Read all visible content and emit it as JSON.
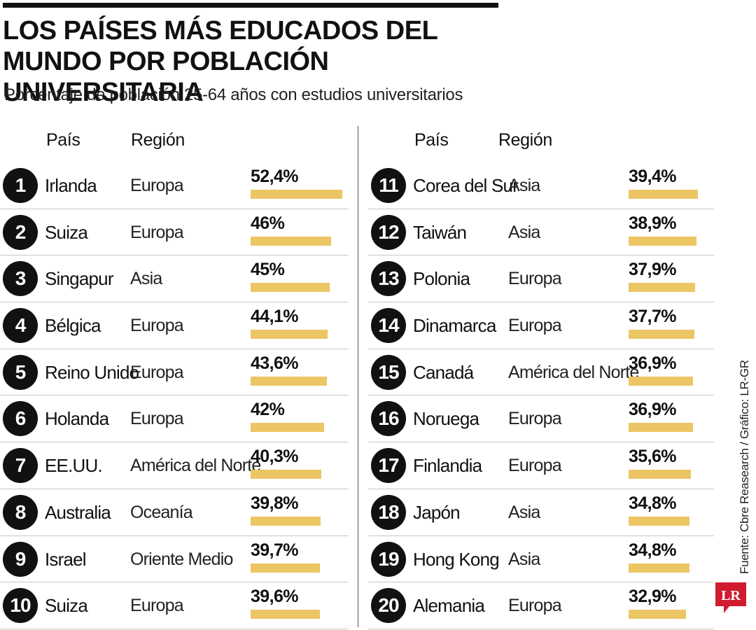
{
  "title": "LOS PAÍSES MÁS EDUCADOS DEL MUNDO POR POBLACIÓN UNIVERSITARIA",
  "subtitle": "Porcentaje de población 25-64 años con estudios universitarios",
  "headers": {
    "country": "País",
    "region": "Región"
  },
  "source": "Fuente: Cbre Reasearch / Gráfico: LR-GR",
  "logo_text": "LR",
  "colors": {
    "bar": "#ecc564",
    "rank_bg": "#111111",
    "logo": "#d01b2f"
  },
  "chart_data": {
    "type": "bar",
    "orientation": "horizontal",
    "title": "LOS PAÍSES MÁS EDUCADOS DEL MUNDO POR POBLACIÓN UNIVERSITARIA",
    "subtitle": "Porcentaje de población 25-64 años con estudios universitarios",
    "unit": "%",
    "rows": [
      {
        "rank": "1",
        "country": "Irlanda",
        "region": "Europa",
        "value": 52.4,
        "label": "52,4%"
      },
      {
        "rank": "2",
        "country": "Suiza",
        "region": "Europa",
        "value": 46,
        "label": "46%"
      },
      {
        "rank": "3",
        "country": "Singapur",
        "region": "Asia",
        "value": 45,
        "label": "45%"
      },
      {
        "rank": "4",
        "country": "Bélgica",
        "region": "Europa",
        "value": 44.1,
        "label": "44,1%"
      },
      {
        "rank": "5",
        "country": "Reino Unido",
        "region": "Europa",
        "value": 43.6,
        "label": "43,6%"
      },
      {
        "rank": "6",
        "country": "Holanda",
        "region": "Europa",
        "value": 42,
        "label": "42%"
      },
      {
        "rank": "7",
        "country": "EE.UU.",
        "region": "América del Norte",
        "value": 40.3,
        "label": "40,3%"
      },
      {
        "rank": "8",
        "country": "Australia",
        "region": "Oceanía",
        "value": 39.8,
        "label": "39,8%"
      },
      {
        "rank": "9",
        "country": "Israel",
        "region": "Oriente Medio",
        "value": 39.7,
        "label": "39,7%"
      },
      {
        "rank": "10",
        "country": "Suiza",
        "region": "Europa",
        "value": 39.6,
        "label": "39,6%"
      },
      {
        "rank": "11",
        "country": "Corea del Sur",
        "region": "Asia",
        "value": 39.4,
        "label": "39,4%"
      },
      {
        "rank": "12",
        "country": "Taiwán",
        "region": "Asia",
        "value": 38.9,
        "label": "38,9%"
      },
      {
        "rank": "13",
        "country": "Polonia",
        "region": "Europa",
        "value": 37.9,
        "label": "37,9%"
      },
      {
        "rank": "14",
        "country": "Dinamarca",
        "region": "Europa",
        "value": 37.7,
        "label": "37,7%"
      },
      {
        "rank": "15",
        "country": "Canadá",
        "region": "América del Norte",
        "value": 36.9,
        "label": "36,9%"
      },
      {
        "rank": "16",
        "country": "Noruega",
        "region": "Europa",
        "value": 36.9,
        "label": "36,9%"
      },
      {
        "rank": "17",
        "country": "Finlandia",
        "region": "Europa",
        "value": 35.6,
        "label": "35,6%"
      },
      {
        "rank": "18",
        "country": "Japón",
        "region": "Asia",
        "value": 34.8,
        "label": "34,8%"
      },
      {
        "rank": "19",
        "country": "Hong Kong",
        "region": "Asia",
        "value": 34.8,
        "label": "34,8%"
      },
      {
        "rank": "20",
        "country": "Alemania",
        "region": "Europa",
        "value": 32.9,
        "label": "32,9%"
      }
    ]
  }
}
